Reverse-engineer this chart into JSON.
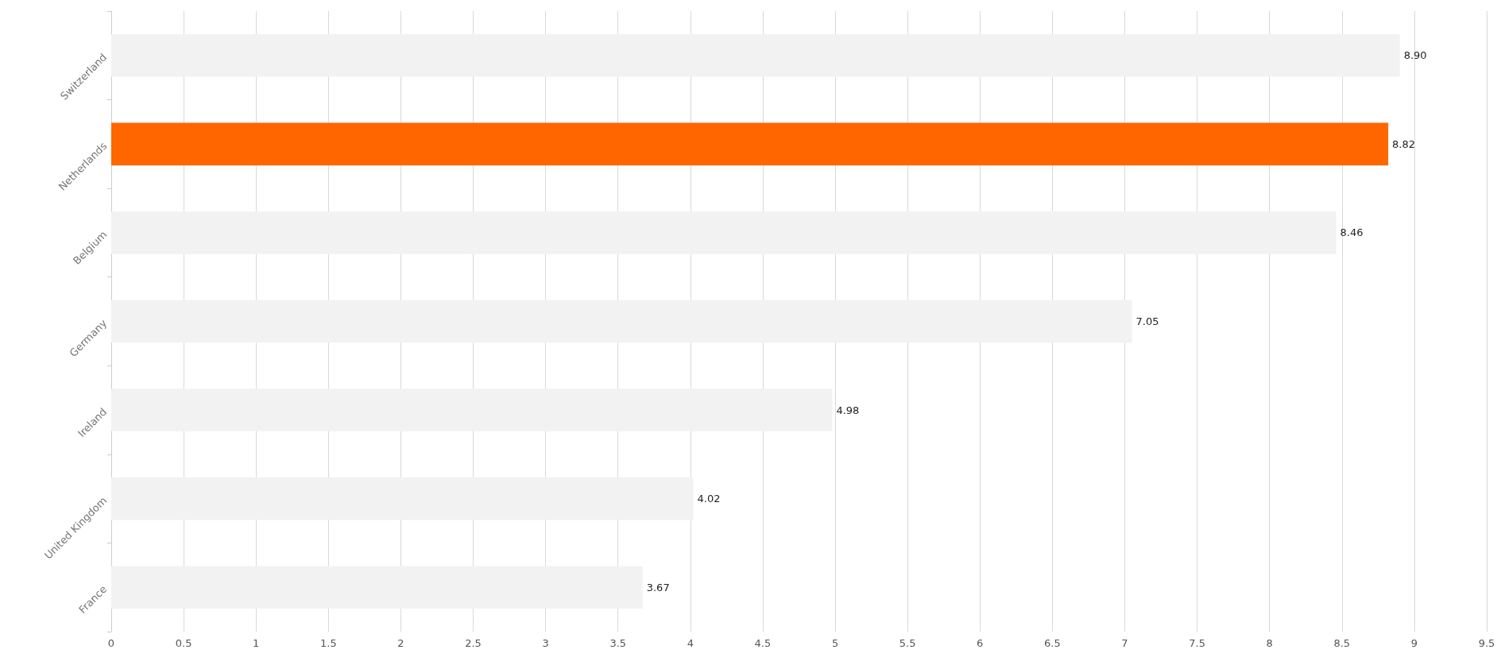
{
  "chart_data": {
    "type": "bar",
    "orientation": "horizontal",
    "categories": [
      "Switzerland",
      "Netherlands",
      "Belgium",
      "Germany",
      "Ireland",
      "United Kingdom",
      "France"
    ],
    "values": [
      8.9,
      8.82,
      8.46,
      7.05,
      4.98,
      4.02,
      3.67
    ],
    "colors": [
      "#f2f2f2",
      "#ff6600",
      "#f2f2f2",
      "#f2f2f2",
      "#f2f2f2",
      "#f2f2f2",
      "#f2f2f2"
    ],
    "value_labels": [
      "8.90",
      "8.82",
      "8.46",
      "7.05",
      "4.98",
      "4.02",
      "3.67"
    ],
    "xlim": [
      0,
      9.5
    ],
    "xticks": [
      0,
      0.5,
      1,
      1.5,
      2,
      2.5,
      3,
      3.5,
      4,
      4.5,
      5,
      5.5,
      6,
      6.5,
      7,
      7.5,
      8,
      8.5,
      9,
      9.5
    ],
    "grid": "x"
  }
}
